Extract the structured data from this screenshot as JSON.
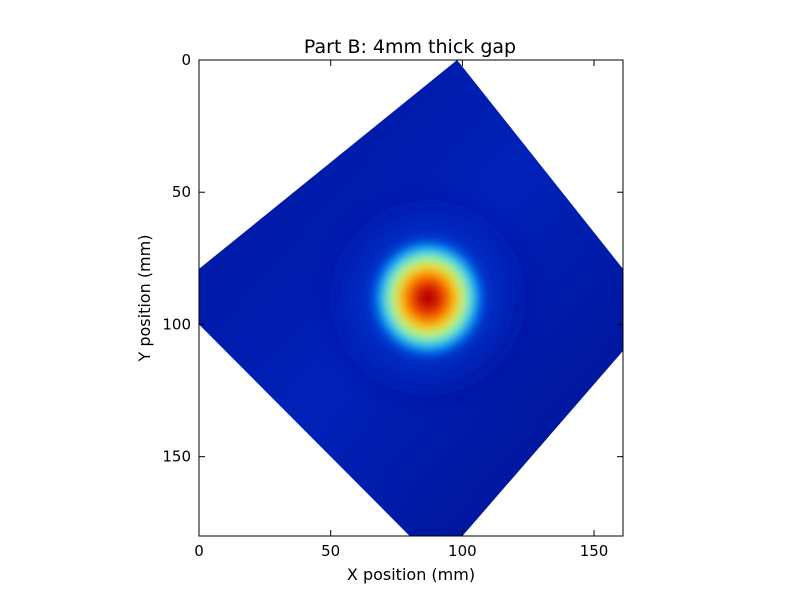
{
  "chart_data": {
    "type": "heatmap",
    "title": "Part B: 4mm thick gap",
    "xlabel": "X position (mm)",
    "ylabel": "Y position (mm)",
    "xlim": [
      0,
      161
    ],
    "ylim": [
      180,
      0
    ],
    "y_axis_inverted": true,
    "grid": false,
    "colormap": "jet",
    "xticks": [
      0,
      50,
      100,
      150
    ],
    "yticks": [
      0,
      50,
      100,
      150
    ],
    "data_region": {
      "shape": "rotated square",
      "vertices_mm": [
        [
          98,
          0
        ],
        [
          161,
          79
        ],
        [
          161,
          110
        ],
        [
          100,
          180
        ],
        [
          80,
          180
        ],
        [
          0,
          100
        ],
        [
          0,
          79
        ],
        [
          98,
          0
        ]
      ],
      "outside_color": "#ffffff"
    },
    "background_level": 0.1,
    "peak": {
      "x": 85,
      "y": 96,
      "level": 1.0
    },
    "hot_spot": {
      "x_range": [
        69,
        105
      ],
      "y_range": [
        70,
        108
      ]
    }
  }
}
